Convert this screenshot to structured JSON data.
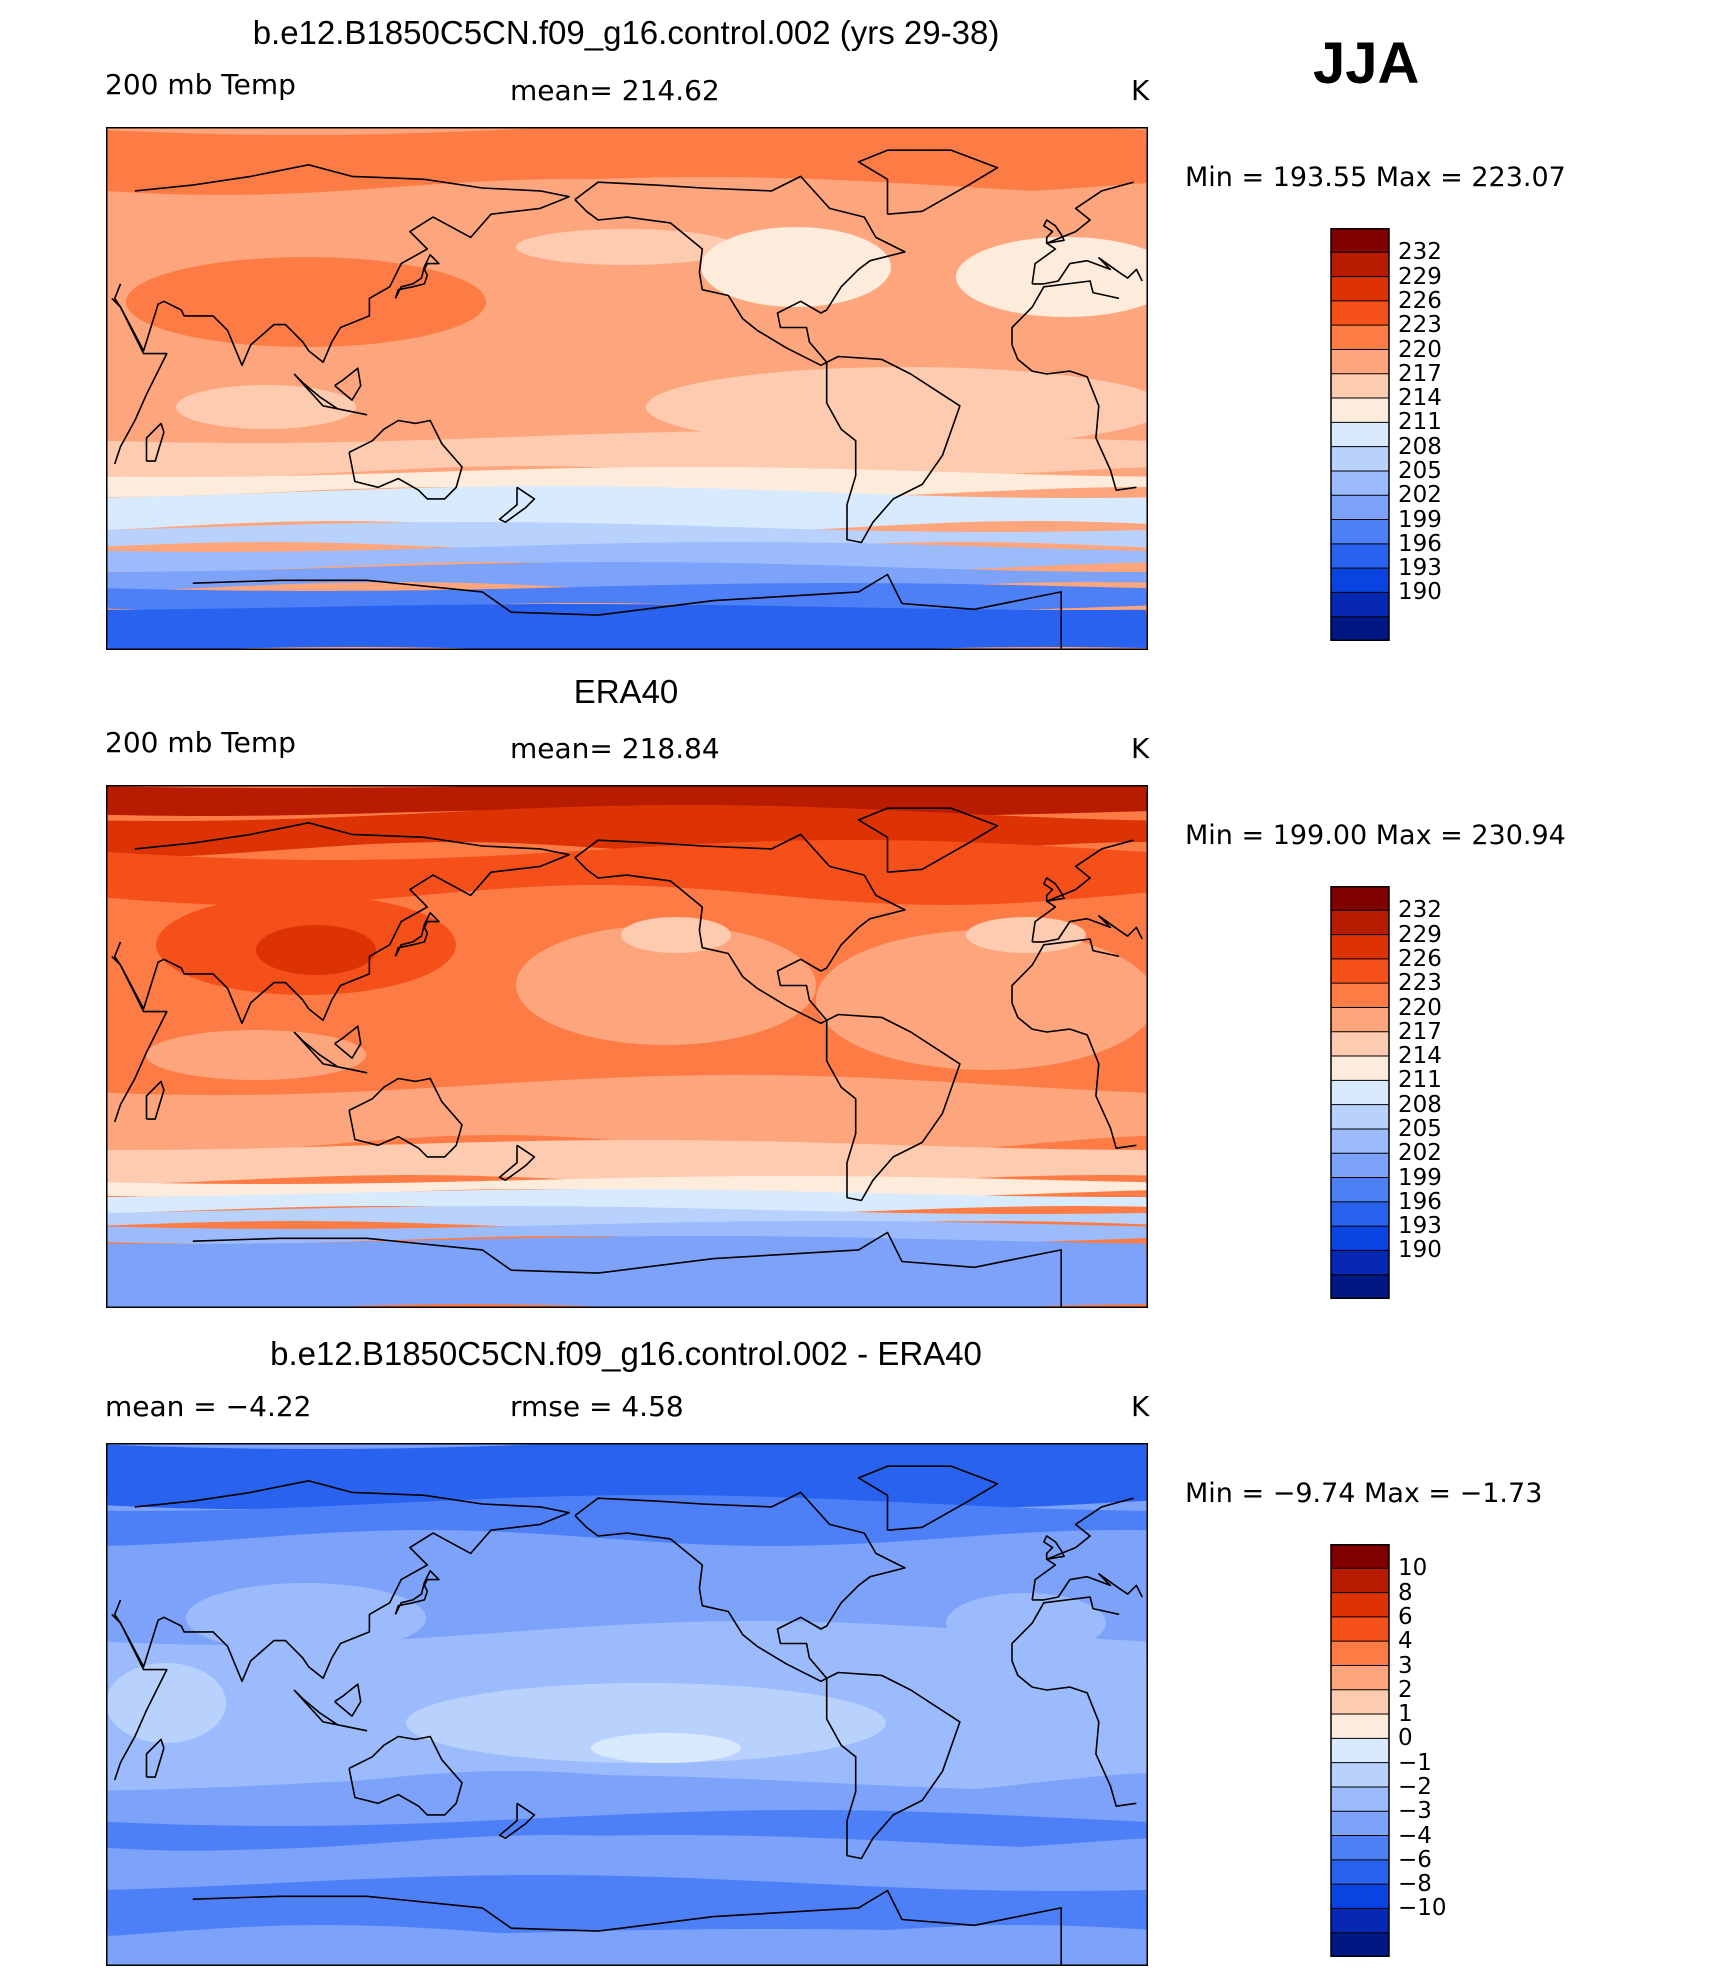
{
  "season": "JJA",
  "panels": [
    {
      "title": "b.e12.B1850C5CN.f09_g16.control.002 (yrs 29-38)",
      "left": "200 mb Temp",
      "center": "mean= 214.62",
      "units": "K",
      "minmax": "Min = 193.55 Max = 223.07",
      "field_kind": "model",
      "colorbar": {
        "colors": [
          "#800000",
          "#b71c00",
          "#dd3304",
          "#f6501a",
          "#fd7c46",
          "#fda57c",
          "#fdcbb0",
          "#fdebdc",
          "#d8eafd",
          "#b9d2fd",
          "#9bbbfc",
          "#7da2fa",
          "#4d7ff7",
          "#2962ee",
          "#0a44e0",
          "#0628b4",
          "#011784"
        ],
        "labels": [
          "232",
          "229",
          "226",
          "223",
          "220",
          "217",
          "214",
          "211",
          "208",
          "205",
          "202",
          "199",
          "196",
          "193",
          "190"
        ]
      }
    },
    {
      "title": "ERA40",
      "left": "200 mb Temp",
      "center": "mean= 218.84",
      "units": "K",
      "minmax": "Min = 199.00 Max = 230.94",
      "field_kind": "obs",
      "colorbar": {
        "colors": [
          "#800000",
          "#b71c00",
          "#dd3304",
          "#f6501a",
          "#fd7c46",
          "#fda57c",
          "#fdcbb0",
          "#fdebdc",
          "#d8eafd",
          "#b9d2fd",
          "#9bbbfc",
          "#7da2fa",
          "#4d7ff7",
          "#2962ee",
          "#0a44e0",
          "#0628b4",
          "#011784"
        ],
        "labels": [
          "232",
          "229",
          "226",
          "223",
          "220",
          "217",
          "214",
          "211",
          "208",
          "205",
          "202",
          "199",
          "196",
          "193",
          "190"
        ]
      }
    },
    {
      "title": "b.e12.B1850C5CN.f09_g16.control.002 - ERA40",
      "left": "mean =   −4.22",
      "center": "rmse =    4.58",
      "units": "K",
      "minmax": "Min =  −9.74 Max =  −1.73",
      "field_kind": "diff",
      "colorbar": {
        "colors": [
          "#800000",
          "#b71c00",
          "#dd3304",
          "#f6501a",
          "#fd7c46",
          "#fda57c",
          "#fdcbb0",
          "#fdebdc",
          "#d8eafd",
          "#b9d2fd",
          "#9bbbfc",
          "#7da2fa",
          "#4d7ff7",
          "#2962ee",
          "#0a44e0",
          "#0628b4",
          "#011784"
        ],
        "labels": [
          "10",
          "8",
          "6",
          "4",
          "3",
          "2",
          "1",
          "0",
          "−1",
          "−2",
          "−3",
          "−4",
          "−6",
          "−8",
          "−10"
        ]
      }
    }
  ]
}
